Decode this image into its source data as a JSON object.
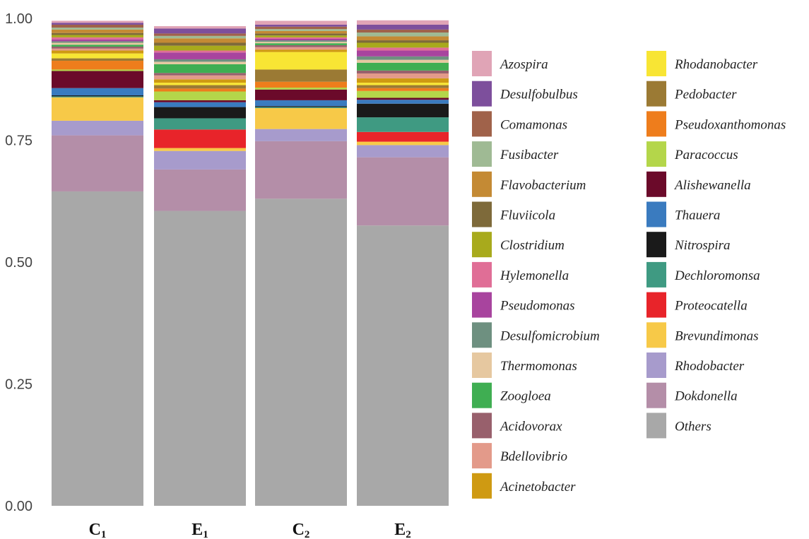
{
  "chart_data": {
    "type": "bar",
    "stacked": true,
    "categories": [
      "C1",
      "E1",
      "C2",
      "E2"
    ],
    "category_labels": [
      {
        "main": "C",
        "sub": "1"
      },
      {
        "main": "E",
        "sub": "1"
      },
      {
        "main": "C",
        "sub": "2"
      },
      {
        "main": "E",
        "sub": "2"
      }
    ],
    "ylim": [
      0,
      1
    ],
    "yticks": [
      0,
      0.25,
      0.5,
      0.75,
      1
    ],
    "ytick_labels": [
      "0.00",
      "0.25",
      "0.50",
      "0.75",
      "1.00"
    ],
    "grid": false,
    "legend_position": "right",
    "series": [
      {
        "name": "Others",
        "color": "#a8a8a8",
        "values": [
          0.645,
          0.605,
          0.63,
          0.575
        ]
      },
      {
        "name": "Dokdonella",
        "color": "#b48ea8",
        "values": [
          0.115,
          0.085,
          0.118,
          0.14
        ]
      },
      {
        "name": "Rhodobacter",
        "color": "#a79bcc",
        "values": [
          0.03,
          0.038,
          0.025,
          0.025
        ]
      },
      {
        "name": "Brevundimonas",
        "color": "#f7c948",
        "values": [
          0.048,
          0.006,
          0.043,
          0.007
        ]
      },
      {
        "name": "Proteocatella",
        "color": "#e8242a",
        "values": [
          0.0,
          0.038,
          0.0,
          0.02
        ]
      },
      {
        "name": "Dechloromonsa",
        "color": "#3f9a82",
        "values": [
          0.002,
          0.023,
          0.002,
          0.03
        ]
      },
      {
        "name": "Nitrospira",
        "color": "#1a1a1a",
        "values": [
          0.002,
          0.023,
          0.002,
          0.028
        ]
      },
      {
        "name": "Thauera",
        "color": "#3a7bbf",
        "values": [
          0.015,
          0.01,
          0.012,
          0.008
        ]
      },
      {
        "name": "Alishewanella",
        "color": "#6b0a2a",
        "values": [
          0.035,
          0.004,
          0.022,
          0.004
        ]
      },
      {
        "name": "Paracoccus",
        "color": "#b4d64a",
        "values": [
          0.003,
          0.018,
          0.004,
          0.014
        ]
      },
      {
        "name": "Pseudoxanthomonas",
        "color": "#ee7d1c",
        "values": [
          0.018,
          0.006,
          0.012,
          0.006
        ]
      },
      {
        "name": "Pedobacter",
        "color": "#9b7a34",
        "values": [
          0.005,
          0.007,
          0.025,
          0.006
        ]
      },
      {
        "name": "Rhodanobacter",
        "color": "#f8e534",
        "values": [
          0.01,
          0.005,
          0.036,
          0.005
        ]
      },
      {
        "name": "Acinetobacter",
        "color": "#cf9a12",
        "values": [
          0.006,
          0.007,
          0.005,
          0.009
        ]
      },
      {
        "name": "Bdellovibrio",
        "color": "#e39a8a",
        "values": [
          0.004,
          0.008,
          0.005,
          0.01
        ]
      },
      {
        "name": "Acidovorax",
        "color": "#98606c",
        "values": [
          0.004,
          0.005,
          0.004,
          0.006
        ]
      },
      {
        "name": "Zoogloea",
        "color": "#3fae52",
        "values": [
          0.004,
          0.018,
          0.004,
          0.016
        ]
      },
      {
        "name": "Thermomonas",
        "color": "#e6c8a0",
        "values": [
          0.004,
          0.005,
          0.003,
          0.006
        ]
      },
      {
        "name": "Desulfomicrobium",
        "color": "#6e9080",
        "values": [
          0.003,
          0.005,
          0.003,
          0.007
        ]
      },
      {
        "name": "Pseudomonas",
        "color": "#a8449e",
        "values": [
          0.004,
          0.014,
          0.003,
          0.012
        ]
      },
      {
        "name": "Hylemonella",
        "color": "#e06e96",
        "values": [
          0.004,
          0.004,
          0.003,
          0.006
        ]
      },
      {
        "name": "Clostridium",
        "color": "#a8aa1c",
        "values": [
          0.005,
          0.01,
          0.004,
          0.01
        ]
      },
      {
        "name": "Fluviicola",
        "color": "#7e6a3a",
        "values": [
          0.004,
          0.006,
          0.004,
          0.005
        ]
      },
      {
        "name": "Flavobacterium",
        "color": "#c48a34",
        "values": [
          0.007,
          0.009,
          0.005,
          0.008
        ]
      },
      {
        "name": "Fusibacter",
        "color": "#9fba94",
        "values": [
          0.004,
          0.005,
          0.004,
          0.008
        ]
      },
      {
        "name": "Comamonas",
        "color": "#a0624a",
        "values": [
          0.006,
          0.005,
          0.005,
          0.006
        ]
      },
      {
        "name": "Desulfobulbus",
        "color": "#7d4f9c",
        "values": [
          0.004,
          0.01,
          0.004,
          0.01
        ]
      },
      {
        "name": "Azospira",
        "color": "#e0a4b6",
        "values": [
          0.004,
          0.005,
          0.008,
          0.009
        ]
      }
    ]
  },
  "legend": {
    "column1": [
      "Azospira",
      "Desulfobulbus",
      "Comamonas",
      "Fusibacter",
      "Flavobacterium",
      "Fluviicola",
      "Clostridium",
      "Hylemonella",
      "Pseudomonas",
      "Desulfomicrobium",
      "Thermomonas",
      "Zoogloea",
      "Acidovorax",
      "Bdellovibrio",
      "Acinetobacter"
    ],
    "column2": [
      "Rhodanobacter",
      "Pedobacter",
      "Pseudoxanthomonas",
      "Paracoccus",
      "Alishewanella",
      "Thauera",
      "Nitrospira",
      "Dechloromonsa",
      "Proteocatella",
      "Brevundimonas",
      "Rhodobacter",
      "Dokdonella",
      "Others"
    ]
  }
}
